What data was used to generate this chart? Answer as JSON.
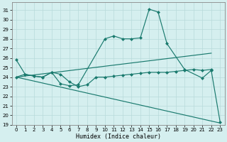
{
  "xlabel": "Humidex (Indice chaleur)",
  "background_color": "#d5efef",
  "grid_color": "#b8dada",
  "line_color": "#1a7a6e",
  "xlim": [
    -0.5,
    23.5
  ],
  "ylim": [
    19,
    31.8
  ],
  "yticks": [
    19,
    20,
    21,
    22,
    23,
    24,
    25,
    26,
    27,
    28,
    29,
    30,
    31
  ],
  "xticks": [
    0,
    1,
    2,
    3,
    4,
    5,
    6,
    7,
    8,
    9,
    10,
    11,
    12,
    13,
    14,
    15,
    16,
    17,
    18,
    19,
    20,
    21,
    22,
    23
  ],
  "line1_x": [
    0,
    1,
    2,
    3,
    4,
    5,
    6,
    7,
    10,
    11,
    12,
    13,
    14,
    15,
    16,
    17,
    19,
    21,
    22,
    23
  ],
  "line1_y": [
    25.8,
    24.3,
    24.1,
    24.0,
    24.5,
    23.3,
    23.1,
    23.2,
    28.0,
    28.3,
    28.0,
    28.0,
    28.1,
    31.1,
    30.8,
    27.5,
    24.8,
    23.9,
    24.7,
    19.3
  ],
  "line2_x": [
    0,
    22
  ],
  "line2_y": [
    24.0,
    26.5
  ],
  "line3_x": [
    0,
    1,
    2,
    3,
    4,
    5,
    6,
    7,
    8,
    9,
    10,
    11,
    12,
    13,
    14,
    15,
    16,
    17,
    18,
    19,
    20,
    21,
    22
  ],
  "line3_y": [
    24.0,
    24.3,
    24.1,
    24.0,
    24.5,
    24.3,
    23.5,
    23.0,
    23.2,
    24.0,
    24.0,
    24.1,
    24.2,
    24.3,
    24.4,
    24.5,
    24.5,
    24.5,
    24.6,
    24.7,
    24.8,
    24.7,
    24.8
  ],
  "line4_x": [
    0,
    23
  ],
  "line4_y": [
    24.0,
    19.2
  ],
  "marker": "D",
  "markersize": 2.5
}
